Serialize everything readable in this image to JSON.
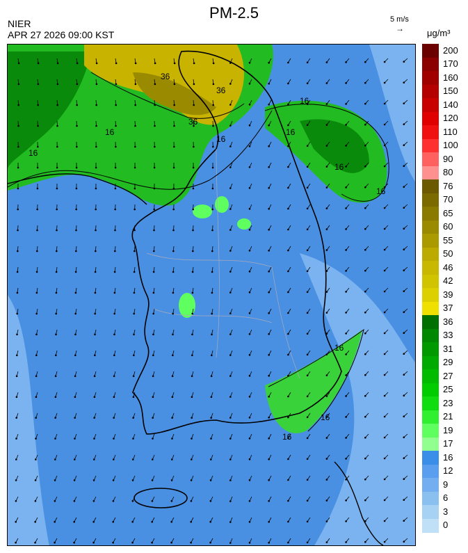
{
  "title": "PM-2.5",
  "agency": "NIER",
  "datetime": "APR 27 2026 09:00 KST",
  "vector_scale_label": "5 m/s",
  "vector_arrow": "→",
  "unit": "μg/m³",
  "contour_labels": [
    "16",
    "36"
  ],
  "legend": {
    "labels": [
      "200",
      "170",
      "160",
      "150",
      "140",
      "120",
      "110",
      "100",
      "90",
      "80",
      "76",
      "70",
      "65",
      "60",
      "55",
      "50",
      "46",
      "42",
      "39",
      "37",
      "36",
      "33",
      "31",
      "29",
      "27",
      "25",
      "23",
      "21",
      "19",
      "17",
      "16",
      "12",
      "9",
      "6",
      "3",
      "0"
    ],
    "colors": [
      "#6b0000",
      "#8b0000",
      "#a00000",
      "#b40000",
      "#c80000",
      "#e00000",
      "#f01010",
      "#ff3030",
      "#ff6060",
      "#ff9090",
      "#6b5a00",
      "#7a6a00",
      "#8a7a00",
      "#9a8a00",
      "#aa9a00",
      "#bbab00",
      "#c8b800",
      "#d0c400",
      "#dcd000",
      "#f0e000",
      "#007000",
      "#008800",
      "#009900",
      "#00aa00",
      "#00bb00",
      "#00cc00",
      "#10dd10",
      "#30ee30",
      "#60ff60",
      "#90ff90",
      "#3a8ee8",
      "#5a9ef0",
      "#72aef0",
      "#8ac0f0",
      "#a8d2f4",
      "#c0e0f8"
    ]
  }
}
